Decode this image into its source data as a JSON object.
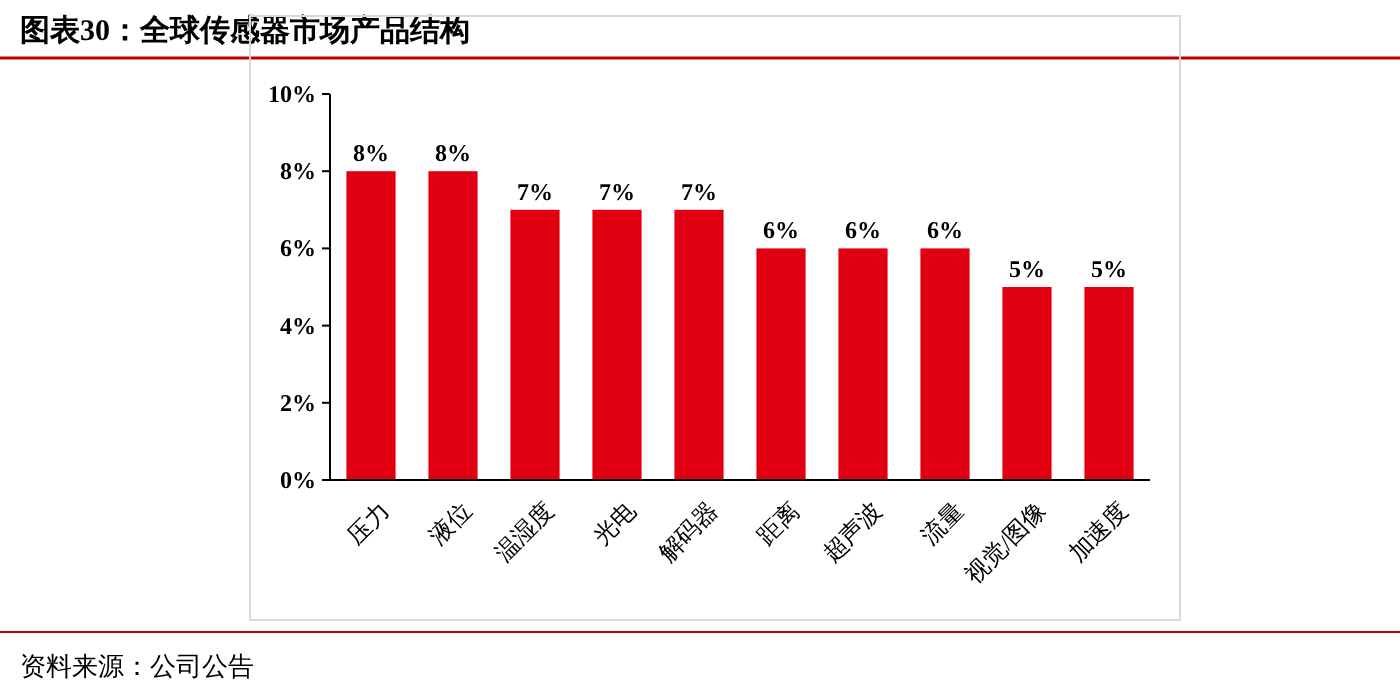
{
  "chart_data": {
    "type": "bar",
    "title": "图表30：全球传感器市场产品结构",
    "categories": [
      "压力",
      "液位",
      "温湿度",
      "光电",
      "解码器",
      "距离",
      "超声波",
      "流量",
      "视觉/图像",
      "加速度"
    ],
    "values": [
      8,
      8,
      7,
      7,
      7,
      6,
      6,
      6,
      5,
      5
    ],
    "value_labels": [
      "8%",
      "8%",
      "7%",
      "7%",
      "7%",
      "6%",
      "6%",
      "6%",
      "5%",
      "5%"
    ],
    "color": "#e00012",
    "ylim": [
      0,
      10
    ],
    "yticks": [
      {
        "value": 0,
        "label": "0%"
      },
      {
        "value": 2,
        "label": "2%"
      },
      {
        "value": 4,
        "label": "4%"
      },
      {
        "value": 6,
        "label": "6%"
      },
      {
        "value": 8,
        "label": "8%"
      },
      {
        "value": 10,
        "label": "10%"
      }
    ],
    "annotations": [
      "资料来源：公司公告"
    ]
  }
}
